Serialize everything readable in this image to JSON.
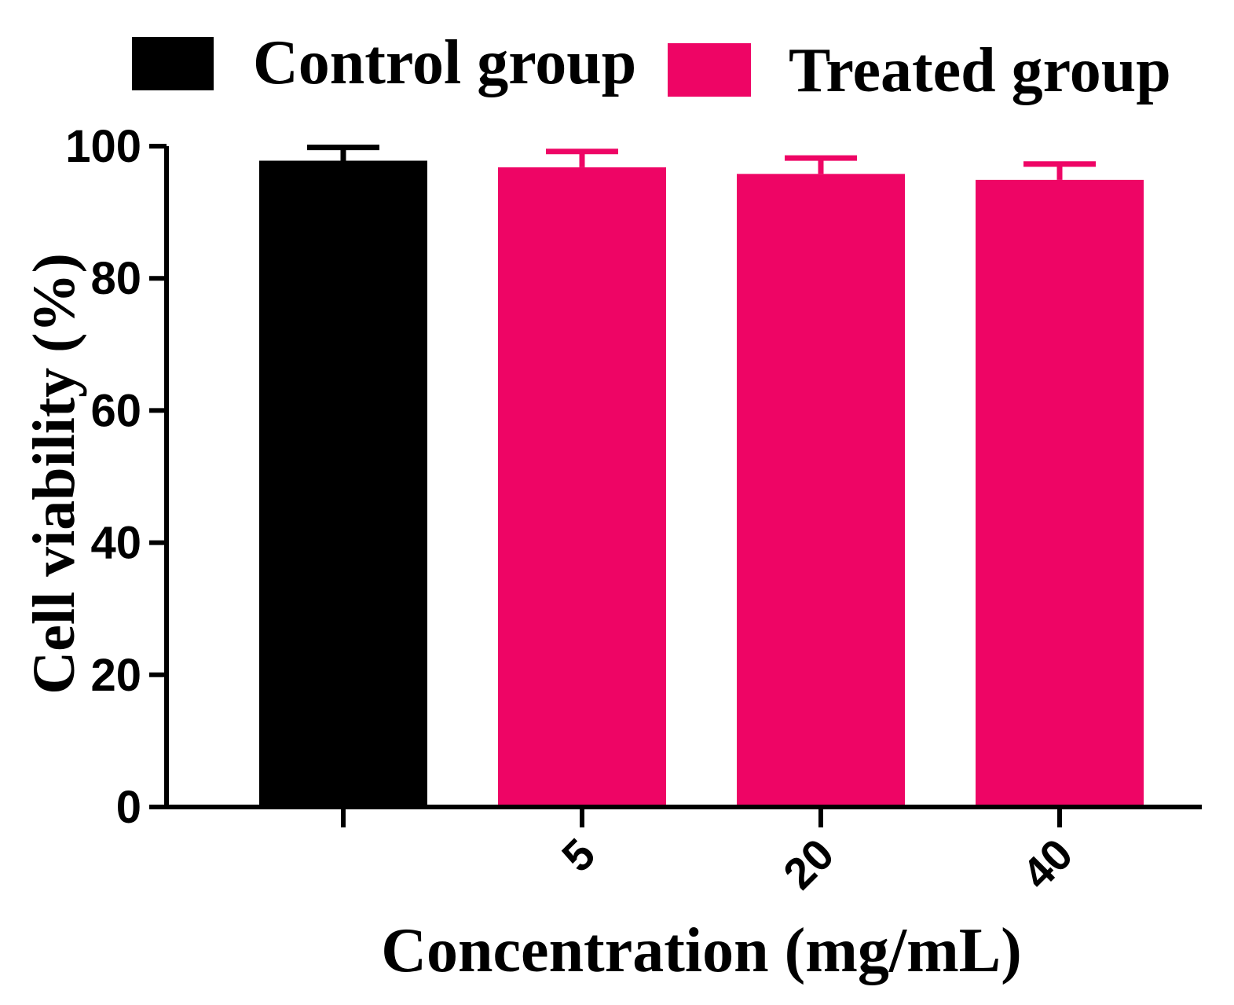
{
  "chart_data": {
    "type": "bar",
    "title": "",
    "xlabel": "Concentration (mg/mL)",
    "ylabel": "Cell viability (%)",
    "ylim": [
      0,
      100
    ],
    "yticks": [
      "0",
      "20",
      "40",
      "60",
      "80",
      "100"
    ],
    "grid": false,
    "legend_position": "top",
    "categories": [
      "",
      "5",
      "20",
      "40"
    ],
    "values": [
      97.8,
      96.8,
      95.8,
      94.9
    ],
    "errors": [
      2.0,
      2.4,
      2.4,
      2.4
    ],
    "series": [
      {
        "name": "Control group",
        "color": "#000000",
        "indices": [
          0
        ]
      },
      {
        "name": "Treated group",
        "color": "#ee0565",
        "indices": [
          1,
          2,
          3
        ]
      }
    ]
  }
}
